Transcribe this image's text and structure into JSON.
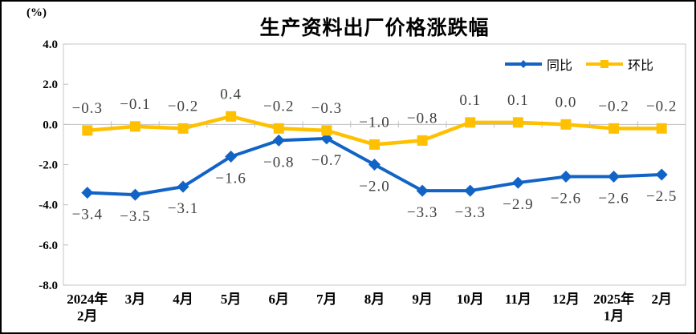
{
  "colors": {
    "plot_border": "#C9C7C7",
    "axis_line": "#BFBFBF",
    "data_label": "#404040",
    "text": "#000000"
  },
  "chart_data": {
    "type": "line",
    "title": "生产资料出厂价格涨跌幅",
    "ylabel": "(%)",
    "categories": [
      "2024年\n2月",
      "3月",
      "4月",
      "5月",
      "6月",
      "7月",
      "8月",
      "9月",
      "10月",
      "11月",
      "12月",
      "2025年\n1月",
      "2月"
    ],
    "series": [
      {
        "name": "同比",
        "color": "#1263C6",
        "marker": "diamond",
        "label_position": "below",
        "values": [
          -3.4,
          -3.5,
          -3.1,
          -1.6,
          -0.8,
          -0.7,
          -2.0,
          -3.3,
          -3.3,
          -2.9,
          -2.6,
          -2.6,
          -2.5
        ]
      },
      {
        "name": "环比",
        "color": "#FFC000",
        "marker": "square",
        "label_position": "above",
        "values": [
          -0.3,
          -0.1,
          -0.2,
          0.4,
          -0.2,
          -0.3,
          -1.0,
          -0.8,
          0.1,
          0.1,
          0.0,
          -0.2,
          -0.2
        ]
      }
    ],
    "ylim": [
      -8.0,
      4.0
    ],
    "y_ticks": [
      4.0,
      2.0,
      0.0,
      -2.0,
      -4.0,
      -6.0,
      -8.0
    ],
    "grid": "zero-line-only",
    "legend_position": "top-right-inside"
  }
}
